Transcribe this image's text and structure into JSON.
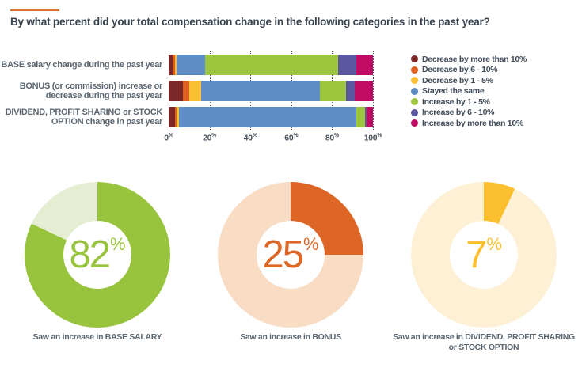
{
  "page": {
    "title": "By what percent did your total compensation change in the following categories in the past year?"
  },
  "chart_data": [
    {
      "type": "bar",
      "subtype": "horizontal-stacked",
      "title": "",
      "xlabel": "",
      "ylabel": "",
      "xlim": [
        0,
        100
      ],
      "x_ticks": [
        "0%",
        "20%",
        "40%",
        "60%",
        "80%",
        "100%"
      ],
      "grid": "dotted-vertical",
      "legend_position": "right",
      "categories": [
        "BASE salary change during the past year",
        "BONUS (or commission) increase or decrease during the past year",
        "DIVIDEND, PROFIT SHARING or STOCK OPTION change in past year"
      ],
      "series": [
        {
          "name": "Decrease by more than 10%",
          "color": "#7b2829",
          "values": [
            2,
            7,
            3
          ]
        },
        {
          "name": "Decrease by 6 - 10%",
          "color": "#dd6022",
          "values": [
            1,
            3,
            1
          ]
        },
        {
          "name": "Decrease by 1 - 5%",
          "color": "#fcbf33",
          "values": [
            1,
            6,
            1
          ]
        },
        {
          "name": "Stayed the same",
          "color": "#5f8dc5",
          "values": [
            14,
            58,
            87
          ]
        },
        {
          "name": "Increase by 1 - 5%",
          "color": "#9dc53d",
          "values": [
            65,
            13,
            4
          ]
        },
        {
          "name": "Increase by 6 - 10%",
          "color": "#5a57a0",
          "values": [
            9,
            4,
            1
          ]
        },
        {
          "name": "Increase by more than 10%",
          "color": "#c00a64",
          "values": [
            8,
            9,
            3
          ]
        }
      ]
    },
    {
      "type": "pie",
      "subtype": "donut",
      "value": 82,
      "label": "82",
      "unit": "%",
      "color": "#97c33d",
      "track_color": "#e5edd2",
      "caption": "Saw an increase in BASE SALARY"
    },
    {
      "type": "pie",
      "subtype": "donut",
      "value": 25,
      "label": "25",
      "unit": "%",
      "color": "#dd6526",
      "track_color": "#f9dcc4",
      "caption": "Saw an increase in BONUS"
    },
    {
      "type": "pie",
      "subtype": "donut",
      "value": 7,
      "label": "7",
      "unit": "%",
      "color": "#fcc02e",
      "track_color": "#fdf0d4",
      "caption": "Saw an increase in DIVIDEND, PROFIT SHARING or STOCK OPTION"
    }
  ]
}
